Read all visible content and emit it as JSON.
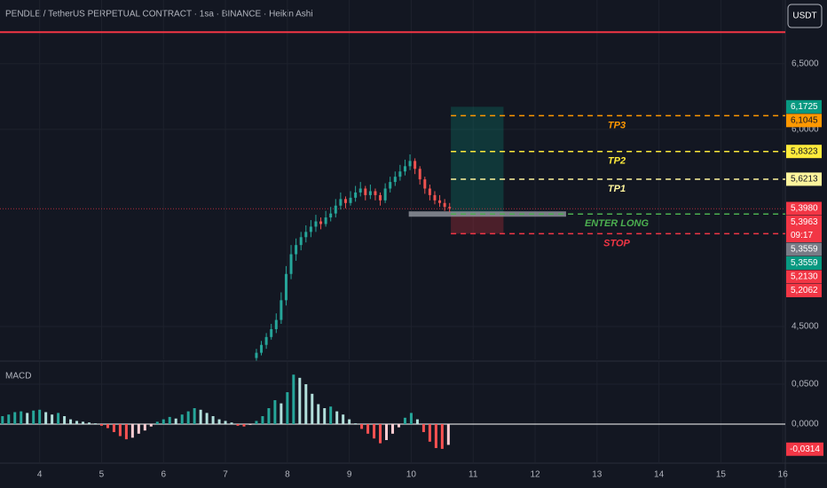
{
  "header": {
    "title": "PENDLE / TetherUS PERPETUAL CONTRACT · 1sa · BINANCE · Heikin Ashi",
    "currency": "USDT"
  },
  "chart_data": [
    {
      "type": "candlestick",
      "up_color": "#26a69a",
      "down_color": "#ef5350",
      "x": [
        7.5,
        7.58,
        7.66,
        7.74,
        7.82,
        7.9,
        7.98,
        8.06,
        8.14,
        8.22,
        8.3,
        8.38,
        8.46,
        8.54,
        8.62,
        8.7,
        8.78,
        8.86,
        8.94,
        9.02,
        9.1,
        9.18,
        9.26,
        9.34,
        9.42,
        9.5,
        9.58,
        9.66,
        9.74,
        9.82,
        9.9,
        9.98,
        10.06,
        10.14,
        10.22,
        10.3,
        10.38,
        10.46,
        10.54,
        10.62
      ],
      "candles": [
        [
          4.26,
          4.33,
          4.24,
          4.3
        ],
        [
          4.3,
          4.39,
          4.28,
          4.36
        ],
        [
          4.36,
          4.45,
          4.33,
          4.42
        ],
        [
          4.42,
          4.52,
          4.4,
          4.48
        ],
        [
          4.48,
          4.6,
          4.45,
          4.55
        ],
        [
          4.55,
          4.76,
          4.52,
          4.7
        ],
        [
          4.7,
          4.96,
          4.66,
          4.9
        ],
        [
          4.9,
          5.12,
          4.86,
          5.05
        ],
        [
          5.05,
          5.17,
          5.0,
          5.12
        ],
        [
          5.12,
          5.22,
          5.08,
          5.18
        ],
        [
          5.18,
          5.27,
          5.14,
          5.22
        ],
        [
          5.22,
          5.31,
          5.18,
          5.26
        ],
        [
          5.26,
          5.35,
          5.22,
          5.3
        ],
        [
          5.3,
          5.33,
          5.24,
          5.28
        ],
        [
          5.28,
          5.38,
          5.26,
          5.33
        ],
        [
          5.33,
          5.41,
          5.3,
          5.36
        ],
        [
          5.36,
          5.47,
          5.33,
          5.42
        ],
        [
          5.42,
          5.52,
          5.39,
          5.47
        ],
        [
          5.47,
          5.49,
          5.4,
          5.44
        ],
        [
          5.44,
          5.53,
          5.42,
          5.48
        ],
        [
          5.48,
          5.57,
          5.45,
          5.52
        ],
        [
          5.52,
          5.6,
          5.49,
          5.55
        ],
        [
          5.55,
          5.57,
          5.46,
          5.5
        ],
        [
          5.5,
          5.58,
          5.47,
          5.53
        ],
        [
          5.53,
          5.55,
          5.46,
          5.5
        ],
        [
          5.5,
          5.52,
          5.42,
          5.46
        ],
        [
          5.46,
          5.59,
          5.44,
          5.55
        ],
        [
          5.55,
          5.64,
          5.52,
          5.6
        ],
        [
          5.6,
          5.68,
          5.57,
          5.64
        ],
        [
          5.64,
          5.73,
          5.61,
          5.68
        ],
        [
          5.68,
          5.77,
          5.65,
          5.72
        ],
        [
          5.72,
          5.81,
          5.69,
          5.76
        ],
        [
          5.76,
          5.78,
          5.66,
          5.7
        ],
        [
          5.7,
          5.72,
          5.58,
          5.62
        ],
        [
          5.62,
          5.64,
          5.51,
          5.55
        ],
        [
          5.55,
          5.58,
          5.46,
          5.5
        ],
        [
          5.5,
          5.53,
          5.43,
          5.46
        ],
        [
          5.46,
          5.5,
          5.41,
          5.44
        ],
        [
          5.44,
          5.47,
          5.38,
          5.41
        ],
        [
          5.41,
          5.44,
          5.37,
          5.4
        ]
      ],
      "xlim": [
        3.36,
        16.04
      ],
      "ylim": [
        4.25,
        6.85
      ],
      "yticks": [
        {
          "value": 4.5,
          "label": "4,5000"
        },
        {
          "value": 6,
          "label": "6,0000"
        },
        {
          "value": 6.5,
          "label": "6,5000"
        }
      ],
      "hline": {
        "value": 6.74,
        "color": "#f23645"
      },
      "position": {
        "x": [
          10.64,
          11.49
        ],
        "entry": 5.3559,
        "target": 6.1725,
        "stop": 5.2062,
        "entry_bar_x": [
          9.96,
          12.5
        ]
      },
      "levels": [
        {
          "name": "TP3",
          "value": 6.1045,
          "color": "#ff9800"
        },
        {
          "name": "TP2",
          "value": 5.8323,
          "color": "#ffeb3b"
        },
        {
          "name": "TP1",
          "value": 5.6213,
          "color": "#fff59d"
        },
        {
          "name": "ENTER LONG",
          "value": 5.3559,
          "color": "#4caf50"
        },
        {
          "name": "STOP",
          "value": 5.2062,
          "color": "#f23645"
        }
      ],
      "price_labels": [
        {
          "value": 6.1725,
          "label": "6,1725",
          "color": "#089981"
        },
        {
          "value": 6.1045,
          "label": "6,1045",
          "color": "#ff9800"
        },
        {
          "value": 5.8323,
          "label": "5,8323",
          "color": "#ffeb3b"
        },
        {
          "value": 5.6213,
          "label": "5,6213",
          "color": "#fff59d"
        },
        {
          "value": 5.398,
          "label": "5,3980",
          "color": "#f23645"
        },
        {
          "value": 5.3963,
          "label": "5,3963",
          "color": "#f23645"
        },
        {
          "value": 5.3559,
          "label": "5,3559",
          "color": "#787b86"
        },
        {
          "value": 5.3559,
          "label": "5,3559",
          "color": "#089981"
        },
        {
          "value": 5.213,
          "label": "5,2130",
          "color": "#f23645"
        },
        {
          "value": 5.2062,
          "label": "5,2062",
          "color": "#f23645"
        }
      ],
      "countdown": "09:17"
    },
    {
      "type": "histogram",
      "title": "MACD",
      "colors": {
        "pos_up": "#26a69a",
        "pos_down": "#b2dfdb",
        "neg_down": "#ff5252",
        "neg_up": "#ffcdd2"
      },
      "x": [
        3.4,
        3.5,
        3.6,
        3.7,
        3.8,
        3.9,
        4.0,
        4.1,
        4.2,
        4.3,
        4.4,
        4.5,
        4.6,
        4.7,
        4.8,
        4.9,
        5.0,
        5.1,
        5.2,
        5.3,
        5.4,
        5.5,
        5.6,
        5.7,
        5.8,
        5.9,
        6.0,
        6.1,
        6.2,
        6.3,
        6.4,
        6.5,
        6.6,
        6.7,
        6.8,
        6.9,
        7.0,
        7.1,
        7.2,
        7.3,
        7.4,
        7.5,
        7.6,
        7.7,
        7.8,
        7.9,
        8.0,
        8.1,
        8.2,
        8.3,
        8.4,
        8.5,
        8.6,
        8.7,
        8.8,
        8.9,
        9.0,
        9.1,
        9.2,
        9.3,
        9.4,
        9.5,
        9.6,
        9.7,
        9.8,
        9.9,
        10.0,
        10.1,
        10.2,
        10.3,
        10.4,
        10.5,
        10.6
      ],
      "values": [
        0.01,
        0.012,
        0.015,
        0.016,
        0.014,
        0.017,
        0.018,
        0.015,
        0.012,
        0.014,
        0.01,
        0.006,
        0.004,
        0.003,
        0.002,
        0.001,
        -0.002,
        -0.005,
        -0.01,
        -0.015,
        -0.019,
        -0.017,
        -0.012,
        -0.008,
        -0.003,
        0.003,
        0.006,
        0.009,
        0.007,
        0.012,
        0.016,
        0.02,
        0.018,
        0.014,
        0.01,
        0.006,
        0.004,
        0.002,
        -0.002,
        -0.003,
        -0.001,
        0.004,
        0.01,
        0.02,
        0.03,
        0.026,
        0.04,
        0.062,
        0.058,
        0.05,
        0.038,
        0.025,
        0.02,
        0.022,
        0.016,
        0.012,
        0.006,
        0.001,
        -0.006,
        -0.012,
        -0.018,
        -0.024,
        -0.02,
        -0.012,
        -0.004,
        0.008,
        0.014,
        0.006,
        -0.01,
        -0.022,
        -0.03,
        -0.031,
        -0.026
      ],
      "xlim": [
        3.36,
        16.04
      ],
      "ylim": [
        -0.0467,
        0.0756
      ],
      "yticks": [
        {
          "value": 0,
          "label": "0,0000"
        },
        {
          "value": 0.05,
          "label": "0,0500"
        }
      ],
      "xticks": [
        4,
        5,
        6,
        7,
        8,
        9,
        10,
        11,
        12,
        13,
        14,
        15,
        16
      ],
      "value_label": {
        "value": -0.0314,
        "label": "-0,0314",
        "color": "#f23645"
      }
    }
  ]
}
